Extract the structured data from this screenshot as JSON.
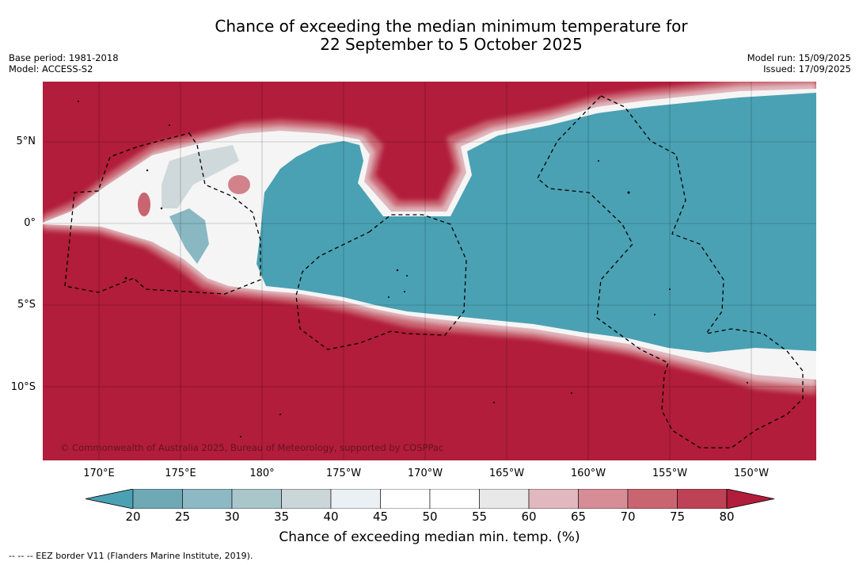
{
  "title": {
    "line1": "Chance of exceeding the median minimum temperature for",
    "line2": "22 September to 5 October 2025"
  },
  "meta_left": {
    "base_period": "Base period: 1981-2018",
    "model": "Model: ACCESS-S2"
  },
  "meta_right": {
    "model_run": "Model run: 15/09/2025",
    "issued": "Issued: 17/09/2025"
  },
  "map": {
    "copyright": "© Commonwealth of Australia 2025, Bureau of Meteorology, supported by COSPPac",
    "lat_labels": [
      "5°N",
      "0°",
      "5°S",
      "10°S"
    ],
    "lon_labels": [
      "170°E",
      "175°E",
      "180°",
      "175°W",
      "170°W",
      "165°W",
      "160°W",
      "155°W",
      "150°W"
    ],
    "colors": {
      "below_20": "#4aa1b3",
      "above_80": "#b11d3a"
    }
  },
  "colorbar": {
    "title": "Chance of exceeding median min. temp. (%)",
    "ticks": [
      "20",
      "25",
      "30",
      "35",
      "40",
      "45",
      "50",
      "55",
      "60",
      "65",
      "70",
      "75",
      "80"
    ],
    "bin_colors": [
      "#6ea9b5",
      "#8cb9c4",
      "#a9c6cb",
      "#cbd6d8",
      "#eaf0f3",
      "#ffffff",
      "#ffffff",
      "#e8e8e8",
      "#e0b8be",
      "#d68d96",
      "#c96571",
      "#be4255"
    ],
    "low_extend_color": "#4aa1b3",
    "high_extend_color": "#b11d3a"
  },
  "legend_note": "--  --  -- EEZ border V11 (Flanders Marine Institute, 2019)."
}
